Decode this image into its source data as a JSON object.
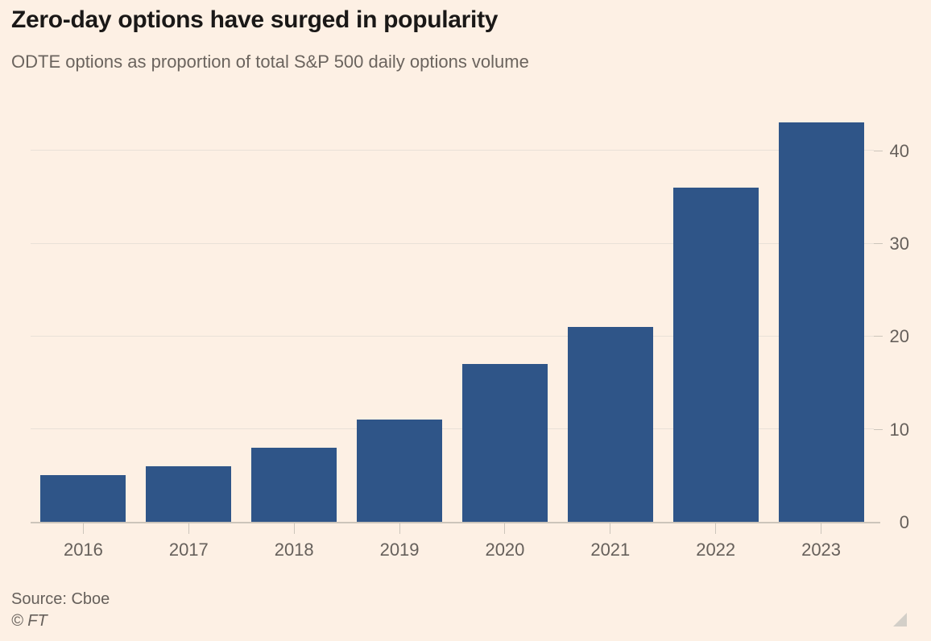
{
  "page": {
    "background": "#fdf0e4"
  },
  "header": {
    "title": "Zero-day options have surged in popularity",
    "subtitle": "ODTE options as proportion of total S&P 500 daily options volume"
  },
  "footer": {
    "source": "Source: Cboe",
    "copyright": "© FT"
  },
  "chart_data": {
    "type": "bar",
    "title": "Zero-day options have surged in popularity",
    "subtitle": "ODTE options as proportion of total S&P 500 daily options volume",
    "categories": [
      "2016",
      "2017",
      "2018",
      "2019",
      "2020",
      "2021",
      "2022",
      "2023"
    ],
    "values": [
      5,
      6,
      8,
      11,
      17,
      21,
      36,
      43
    ],
    "xlabel": "",
    "ylabel": "",
    "ylim": [
      0,
      45.8
    ],
    "yticks": [
      0,
      10,
      20,
      30,
      40
    ],
    "grid": true,
    "legend": "none",
    "axis_labels_side": "right",
    "bar_color": "#2f5588",
    "grid_color": "#e9e1d8",
    "axis_color": "#ccc5bb",
    "label_color": "#66605b",
    "source": "Source: Cboe"
  }
}
